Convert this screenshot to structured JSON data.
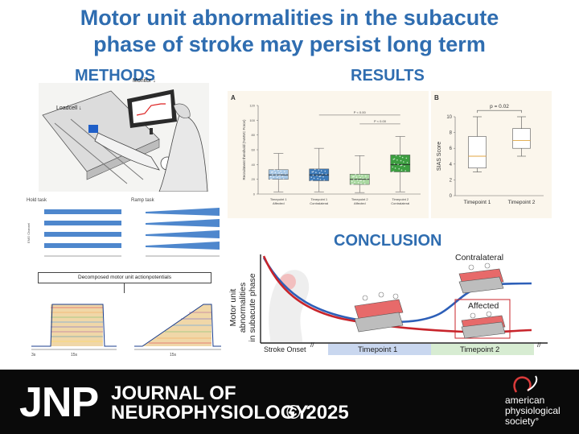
{
  "title": {
    "line1": "Motor unit abnormalities in the subacute",
    "line2": "phase of stroke may persist long term"
  },
  "methods": {
    "heading": "METHODS",
    "monitor_label": "Monitor ↓",
    "loadcell_label": "Loadcell ↓",
    "hold_task_label": "Hold task",
    "ramp_task_label": "Ramp task",
    "decomposed_label": "Decomposed motor unit actionpotentials",
    "emg_channel_label": "EMG Channel",
    "time_label_hold": "15s",
    "time_label_ramp": "15s",
    "time_3s": "3s"
  },
  "results": {
    "heading": "RESULTS",
    "panel_a": {
      "letter": "A",
      "ylabel": "Recruitment threshold (%MVC Force)",
      "p1": "P < 0.00",
      "p2": "P < 0.00"
    },
    "panel_b": {
      "letter": "B",
      "ylabel": "SIAS Score",
      "p": "p = 0.02"
    }
  },
  "conclusion": {
    "heading": "CONCLUSION",
    "ylabel_line1": "Motor unit",
    "ylabel_line2": "abnormalities",
    "ylabel_line3": "in subacute phase",
    "contralateral": "Contralateral",
    "affected": "Affected",
    "stroke_onset": "Stroke Onset",
    "timepoint1": "Timepoint 1",
    "timepoint2": "Timepoint 2",
    "colors": {
      "blue_curve": "#2d5fb8",
      "red_curve": "#c8242b",
      "tp1_bar": "#c9d7ef",
      "tp2_bar": "#d7ecd2"
    }
  },
  "footer": {
    "jnp": "JNP",
    "journal_line1": "JOURNAL OF",
    "journal_line2": "NEUROPHYSIOLOGY.",
    "copyright": "© 2025",
    "aps_line1": "american",
    "aps_line2": "physiological",
    "aps_line3": "society°"
  },
  "chart_data": [
    {
      "type": "box",
      "panel": "A",
      "categories": [
        "Timepoint 1 Affected",
        "Timepoint 1 Contralateral",
        "Timepoint 2 Affected",
        "Timepoint 2 Contralateral"
      ],
      "ylabel": "Recruitment threshold (%MVC Force)",
      "ylim": [
        0,
        120
      ],
      "yticks": [
        0,
        20,
        40,
        60,
        80,
        100,
        120
      ],
      "boxes": [
        {
          "q1": 20,
          "median": 26,
          "q3": 33,
          "whisker_low": 3,
          "whisker_high": 55,
          "color": "#a8c8e6"
        },
        {
          "q1": 18,
          "median": 26,
          "q3": 34,
          "whisker_low": 3,
          "whisker_high": 62,
          "color": "#3d7ab8"
        },
        {
          "q1": 13,
          "median": 20,
          "q3": 27,
          "whisker_low": 2,
          "whisker_high": 52,
          "color": "#a9d8a0"
        },
        {
          "q1": 30,
          "median": 40,
          "q3": 53,
          "whisker_low": 3,
          "whisker_high": 78,
          "color": "#3c9e40"
        }
      ],
      "annotations": [
        "P < 0.00",
        "P < 0.00"
      ]
    },
    {
      "type": "box",
      "panel": "B",
      "categories": [
        "Timepoint 1",
        "Timepoint 2"
      ],
      "ylabel": "SIAS Score",
      "ylim": [
        0,
        10
      ],
      "yticks": [
        0,
        2,
        4,
        6,
        8,
        10
      ],
      "boxes": [
        {
          "q1": 3.5,
          "median": 5,
          "q3": 7.5,
          "whisker_low": 3,
          "whisker_high": 10
        },
        {
          "q1": 6,
          "median": 7,
          "q3": 8.5,
          "whisker_low": 5,
          "whisker_high": 10
        }
      ],
      "annotations": [
        "p = 0.02"
      ]
    }
  ]
}
